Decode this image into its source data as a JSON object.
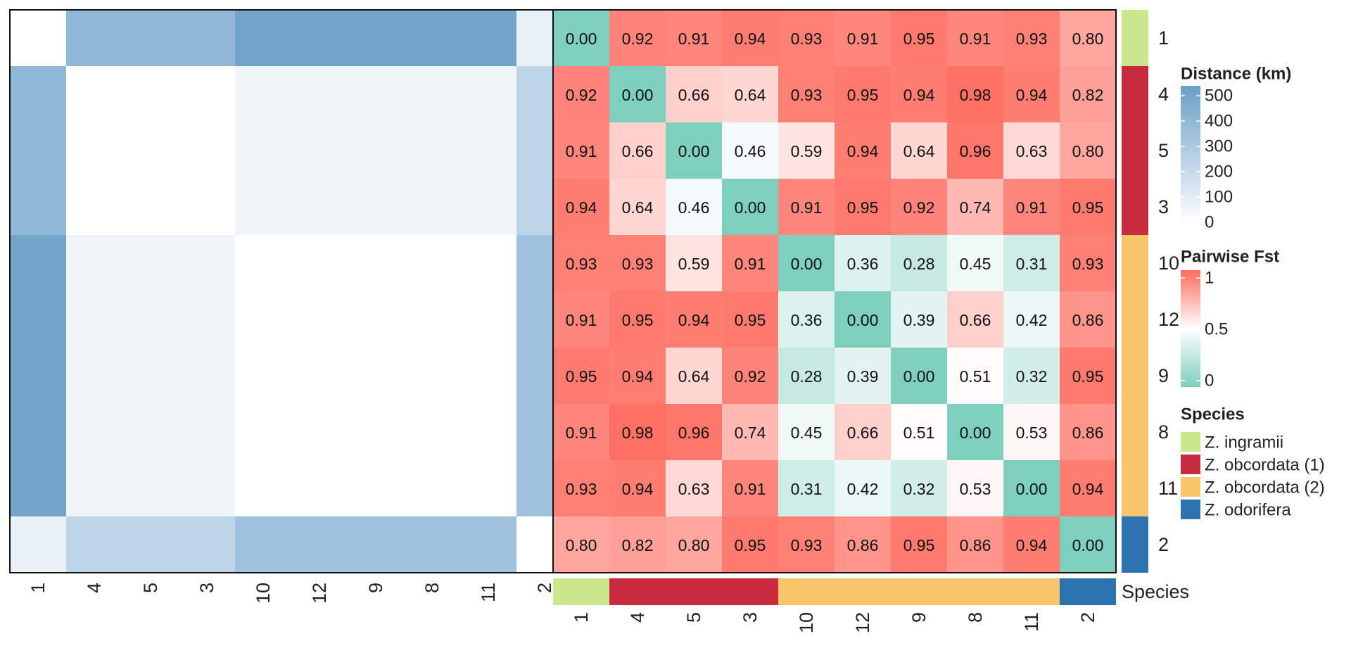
{
  "chart_data": [
    {
      "type": "heatmap",
      "name": "distance",
      "labels": [
        "1",
        "4",
        "5",
        "3",
        "10",
        "12",
        "9",
        "8",
        "11",
        "2"
      ],
      "color_scale": {
        "low": "#ffffff",
        "high": "#6a9fc8",
        "range": [
          0,
          500
        ]
      },
      "values": [
        [
          0,
          370,
          370,
          370,
          470,
          470,
          470,
          470,
          470,
          75
        ],
        [
          370,
          0,
          0,
          0,
          55,
          55,
          55,
          55,
          55,
          220
        ],
        [
          370,
          0,
          0,
          0,
          55,
          55,
          55,
          55,
          55,
          220
        ],
        [
          370,
          0,
          0,
          0,
          55,
          55,
          55,
          55,
          55,
          220
        ],
        [
          470,
          55,
          55,
          55,
          0,
          0,
          0,
          0,
          0,
          320
        ],
        [
          470,
          55,
          55,
          55,
          0,
          0,
          0,
          0,
          0,
          320
        ],
        [
          470,
          55,
          55,
          55,
          0,
          0,
          0,
          0,
          0,
          320
        ],
        [
          470,
          55,
          55,
          55,
          0,
          0,
          0,
          0,
          0,
          320
        ],
        [
          470,
          55,
          55,
          55,
          0,
          0,
          0,
          0,
          0,
          320
        ],
        [
          75,
          220,
          220,
          220,
          320,
          320,
          320,
          320,
          320,
          0
        ]
      ]
    },
    {
      "type": "heatmap",
      "name": "fst",
      "labels": [
        "1",
        "4",
        "5",
        "3",
        "10",
        "12",
        "9",
        "8",
        "11",
        "2"
      ],
      "color_scale": {
        "low": "#7ecfbd",
        "mid": "#ffffff",
        "high": "#ff6b5e",
        "range": [
          0,
          1
        ],
        "midpoint": 0.5
      },
      "value_labels": [
        [
          "0.00",
          "0.92",
          "0.91",
          "0.94",
          "0.93",
          "0.91",
          "0.95",
          "0.91",
          "0.93",
          "0.80"
        ],
        [
          "0.92",
          "0.00",
          "0.66",
          "0.64",
          "0.93",
          "0.95",
          "0.94",
          "0.98",
          "0.94",
          "0.82"
        ],
        [
          "0.91",
          "0.66",
          "0.00",
          "0.46",
          "0.59",
          "0.94",
          "0.64",
          "0.96",
          "0.63",
          "0.80"
        ],
        [
          "0.94",
          "0.64",
          "0.46",
          "0.00",
          "0.91",
          "0.95",
          "0.92",
          "0.74",
          "0.91",
          "0.95"
        ],
        [
          "0.93",
          "0.93",
          "0.59",
          "0.91",
          "0.00",
          "0.36",
          "0.28",
          "0.45",
          "0.31",
          "0.93"
        ],
        [
          "0.91",
          "0.95",
          "0.94",
          "0.95",
          "0.36",
          "0.00",
          "0.39",
          "0.66",
          "0.42",
          "0.86"
        ],
        [
          "0.95",
          "0.94",
          "0.64",
          "0.92",
          "0.28",
          "0.39",
          "0.00",
          "0.51",
          "0.32",
          "0.95"
        ],
        [
          "0.91",
          "0.98",
          "0.96",
          "0.74",
          "0.45",
          "0.66",
          "0.51",
          "0.00",
          "0.53",
          "0.86"
        ],
        [
          "0.93",
          "0.94",
          "0.63",
          "0.91",
          "0.31",
          "0.42",
          "0.32",
          "0.53",
          "0.00",
          "0.94"
        ],
        [
          "0.80",
          "0.82",
          "0.80",
          "0.95",
          "0.93",
          "0.86",
          "0.95",
          "0.86",
          "0.94",
          "0.00"
        ]
      ]
    }
  ],
  "species_annotation": {
    "label": "Species",
    "assignments": [
      "Z. ingramii",
      "Z. obcordata (1)",
      "Z. obcordata (1)",
      "Z. obcordata (1)",
      "Z. obcordata (2)",
      "Z. obcordata (2)",
      "Z. obcordata (2)",
      "Z. obcordata (2)",
      "Z. obcordata (2)",
      "Z. odorifera"
    ]
  },
  "legends": {
    "distance": {
      "title": "Distance (km)",
      "ticks": [
        "500",
        "400",
        "300",
        "200",
        "100",
        "0"
      ]
    },
    "fst": {
      "title": "Pairwise Fst",
      "ticks": [
        "1",
        "0.5",
        "0"
      ]
    },
    "species": {
      "title": "Species",
      "items": [
        {
          "label": "Z. ingramii",
          "color": "#c8e88b"
        },
        {
          "label": "Z. obcordata (1)",
          "color": "#c82a3e"
        },
        {
          "label": "Z. obcordata (2)",
          "color": "#f8c56a"
        },
        {
          "label": "Z. odorifera",
          "color": "#2c72ae"
        }
      ]
    }
  }
}
